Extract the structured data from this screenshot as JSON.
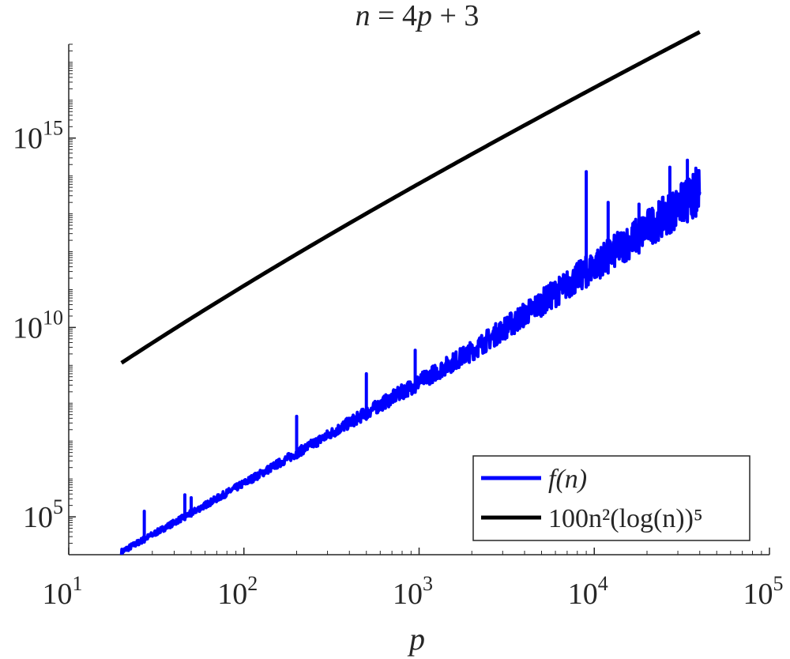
{
  "chart_data": {
    "type": "line",
    "title": "n = 4p + 3",
    "xlabel": "p",
    "ylabel": "",
    "xscale": "log",
    "yscale": "log",
    "xlim": [
      10,
      100000
    ],
    "ylim": [
      10000,
      300000000000000000
    ],
    "grid": false,
    "legend": "bottom-right",
    "x_tick_labels": [
      {
        "base": "10",
        "exp": "1"
      },
      {
        "base": "10",
        "exp": "2"
      },
      {
        "base": "10",
        "exp": "3"
      },
      {
        "base": "10",
        "exp": "4"
      },
      {
        "base": "10",
        "exp": "5"
      }
    ],
    "y_tick_labels": [
      {
        "base": "10",
        "exp": "5"
      },
      {
        "base": "10",
        "exp": "10"
      },
      {
        "base": "10",
        "exp": "15"
      }
    ],
    "series": [
      {
        "name": "f(n)",
        "color": "#0000ff",
        "x": [
          20,
          2000,
          40000
        ],
        "y": [
          10000,
          1300000000,
          10000000000000
        ],
        "spikes": [
          {
            "x": 27,
            "y": 140000
          },
          {
            "x": 46,
            "y": 380000
          },
          {
            "x": 50,
            "y": 320000
          },
          {
            "x": 200,
            "y": 45000000
          },
          {
            "x": 500,
            "y": 600000000
          },
          {
            "x": 950,
            "y": 2500000000
          },
          {
            "x": 3500,
            "y": 10000000000
          },
          {
            "x": 9000,
            "y": 130000000000000
          },
          {
            "x": 12000,
            "y": 20000000000000
          },
          {
            "x": 18000,
            "y": 18000000000000
          },
          {
            "x": 27000,
            "y": 170000000000000
          },
          {
            "x": 34000,
            "y": 260000000000000
          },
          {
            "x": 38000,
            "y": 160000000000000
          }
        ]
      },
      {
        "name": "100n²(log(n))⁵",
        "color": "#000000",
        "x_range": [
          20,
          40000
        ],
        "formula": "100*n^2*(log(n))^5, n = 4p + 3"
      }
    ],
    "legend_entries": {
      "blue_label": "f(n)",
      "black_label": "100n²(log(n))⁵"
    }
  }
}
